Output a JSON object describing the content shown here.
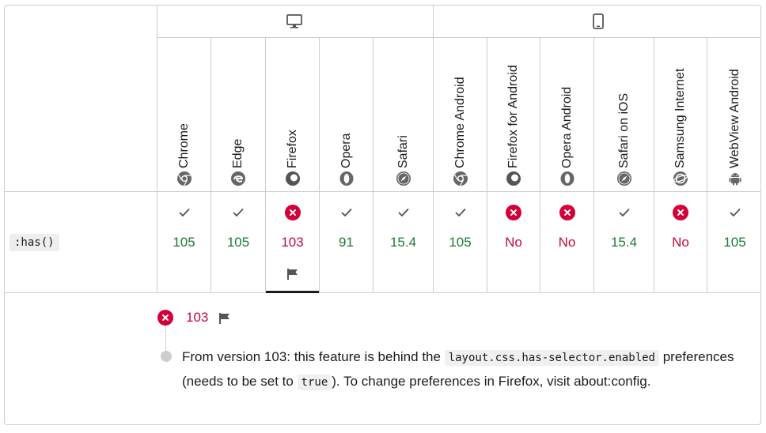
{
  "platforms": {
    "desktop_icon": "desktop-monitor-icon",
    "mobile_icon": "mobile-phone-icon"
  },
  "browsers": [
    {
      "name": "Chrome",
      "icon": "chrome-icon",
      "support": "yes",
      "version": "105"
    },
    {
      "name": "Edge",
      "icon": "edge-icon",
      "support": "yes",
      "version": "105"
    },
    {
      "name": "Firefox",
      "icon": "firefox-icon",
      "support": "no",
      "version": "103",
      "flag": true
    },
    {
      "name": "Opera",
      "icon": "opera-icon",
      "support": "yes",
      "version": "91"
    },
    {
      "name": "Safari",
      "icon": "safari-icon",
      "support": "yes",
      "version": "15.4"
    },
    {
      "name": "Chrome Android",
      "icon": "chrome-icon",
      "support": "yes",
      "version": "105"
    },
    {
      "name": "Firefox for Android",
      "icon": "firefox-icon",
      "support": "no",
      "version": "No"
    },
    {
      "name": "Opera Android",
      "icon": "opera-icon",
      "support": "no",
      "version": "No"
    },
    {
      "name": "Safari on iOS",
      "icon": "safari-icon",
      "support": "yes",
      "version": "15.4"
    },
    {
      "name": "Samsung Internet",
      "icon": "samsung-internet-icon",
      "support": "no",
      "version": "No"
    },
    {
      "name": "WebView Android",
      "icon": "android-icon",
      "support": "yes",
      "version": "105"
    }
  ],
  "feature": {
    "name": ":has()"
  },
  "detail": {
    "version": "103",
    "text_before": "From version 103: this feature is behind the ",
    "pref_code": "layout.css.has-selector.enabled",
    "text_middle": " preferences (needs to be set to ",
    "true_code": "true",
    "text_after": "). To change preferences in Firefox, visit about:config."
  },
  "colors": {
    "supported": "#1e7a35",
    "unsupported": "#c3093d",
    "no_badge": "#d30038",
    "border": "#cdcdcd"
  }
}
